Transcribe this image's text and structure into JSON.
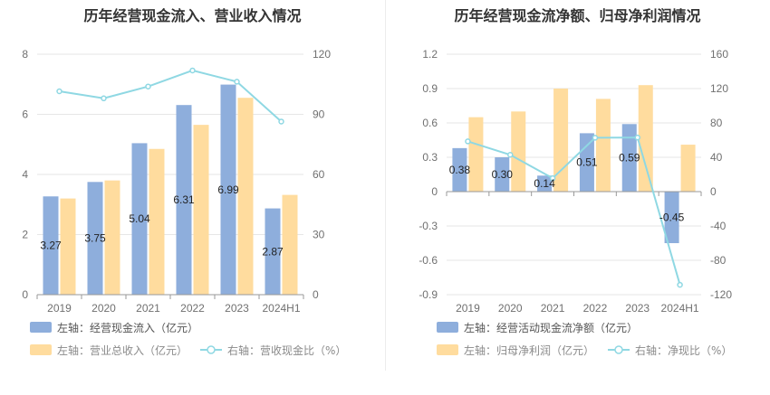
{
  "chart_data": [
    {
      "type": "bar",
      "title": "历年经营现金流入、营业收入情况",
      "categories": [
        "2019",
        "2020",
        "2021",
        "2022",
        "2023",
        "2024H1"
      ],
      "left_axis": {
        "min": 0,
        "max": 8,
        "ticks": [
          "0",
          "2",
          "4",
          "6",
          "8"
        ]
      },
      "right_axis": {
        "min": 0,
        "max": 120,
        "ticks": [
          "0",
          "30",
          "60",
          "90",
          "120"
        ]
      },
      "grid": true,
      "series": [
        {
          "name": "左轴：经营现金流入（亿元）",
          "kind": "bar",
          "axis": "left",
          "color": "#8eaedc",
          "values": [
            3.27,
            3.75,
            5.04,
            6.31,
            6.99,
            2.87
          ],
          "labels": [
            "3.27",
            "3.75",
            "5.04",
            "6.31",
            "6.99",
            "2.87"
          ]
        },
        {
          "name": "左轴：营业总收入（亿元）",
          "kind": "bar",
          "axis": "left",
          "color": "#ffdc9e",
          "values": [
            3.2,
            3.8,
            4.85,
            5.65,
            6.55,
            3.32
          ]
        },
        {
          "name": "右轴：营收现金比（%）",
          "kind": "line",
          "axis": "right",
          "color": "#8fd8e3",
          "values": [
            101.5,
            98.0,
            103.9,
            111.9,
            106.3,
            86.4
          ]
        }
      ],
      "legend_placement": "bottom-left"
    },
    {
      "type": "bar",
      "title": "历年经营现金流净额、归母净利润情况",
      "categories": [
        "2019",
        "2020",
        "2021",
        "2022",
        "2023",
        "2024H1"
      ],
      "left_axis": {
        "min": -0.9,
        "max": 1.2,
        "ticks": [
          "-0.9",
          "-0.6",
          "-0.3",
          "0",
          "0.3",
          "0.6",
          "0.9",
          "1.2"
        ]
      },
      "right_axis": {
        "min": -120,
        "max": 160,
        "ticks": [
          "-120",
          "-80",
          "-40",
          "0",
          "40",
          "80",
          "120",
          "160"
        ]
      },
      "grid": true,
      "series": [
        {
          "name": "左轴：经营活动现金流净额（亿元）",
          "kind": "bar",
          "axis": "left",
          "color": "#8eaedc",
          "values": [
            0.38,
            0.3,
            0.14,
            0.51,
            0.59,
            -0.45
          ],
          "labels": [
            "0.38",
            "0.30",
            "0.14",
            "0.51",
            "0.59",
            "-0.45"
          ]
        },
        {
          "name": "左轴：归母净利润（亿元）",
          "kind": "bar",
          "axis": "left",
          "color": "#ffdc9e",
          "values": [
            0.65,
            0.7,
            0.9,
            0.81,
            0.93,
            0.41
          ]
        },
        {
          "name": "右轴：净现比（%）",
          "kind": "line",
          "axis": "right",
          "color": "#8fd8e3",
          "values": [
            58.5,
            42.9,
            15.6,
            62.7,
            63.0,
            -108.5
          ]
        }
      ],
      "legend_placement": "bottom-left"
    }
  ]
}
